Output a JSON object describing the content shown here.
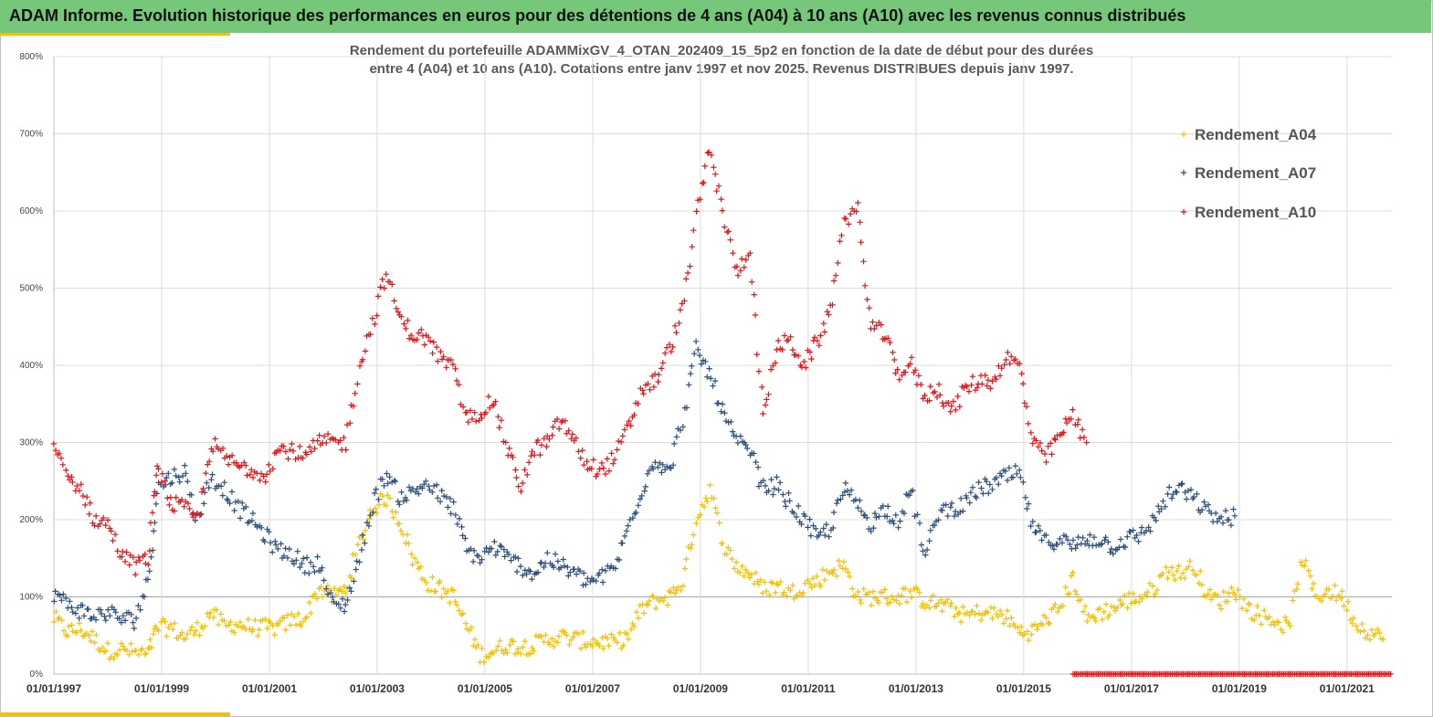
{
  "header": {
    "title": "ADAM Informe. Evolution historique des performances en euros pour des détentions de 4 ans (A04) à 10 ans (A10) avec les revenus connus distribués"
  },
  "colors": {
    "header_bg": "#77c77a",
    "accent": "#f2c200",
    "A04": "#f5c000",
    "A07": "#2e4f7c",
    "A10": "#e8141a"
  },
  "chart_data": {
    "type": "scatter",
    "title_line1": "Rendement du portefeuille ADAMMixGV_4_OTAN_202409_15_5p2  en fonction de la date de début pour des durées",
    "title_line2": "entre 4 (A04) et 10 ans (A10). Cotations entre janv 1997 et nov 2025. Revenus DISTRIBUES depuis janv 1997.",
    "x_range": [
      "1997-01-01",
      "2021-11-01"
    ],
    "ylim": [
      0,
      800
    ],
    "y_ticks": [
      "0%",
      "100%",
      "200%",
      "300%",
      "400%",
      "500%",
      "600%",
      "700%",
      "800%"
    ],
    "x_ticks": [
      "01/01/1997",
      "01/01/1999",
      "01/01/2001",
      "01/01/2003",
      "01/01/2005",
      "01/01/2007",
      "01/01/2009",
      "01/01/2011",
      "01/01/2013",
      "01/01/2015",
      "01/01/2017",
      "01/01/2019",
      "01/01/2021"
    ],
    "grid": true,
    "legend_position": "top-right",
    "series": [
      {
        "name": "Rendement_A04",
        "color": "#f5c000",
        "points": [
          [
            "1997-01",
            72
          ],
          [
            "1997-04",
            55
          ],
          [
            "1997-07",
            58
          ],
          [
            "1997-10",
            45
          ],
          [
            "1998-01",
            30
          ],
          [
            "1998-04",
            32
          ],
          [
            "1998-07",
            28
          ],
          [
            "1998-10",
            25
          ],
          [
            "1998-12",
            60
          ],
          [
            "1999-03",
            60
          ],
          [
            "1999-06",
            48
          ],
          [
            "1999-09",
            58
          ],
          [
            "1999-12",
            80
          ],
          [
            "2000-03",
            62
          ],
          [
            "2000-06",
            65
          ],
          [
            "2000-09",
            60
          ],
          [
            "2000-12",
            60
          ],
          [
            "2001-03",
            60
          ],
          [
            "2001-06",
            70
          ],
          [
            "2001-09",
            72
          ],
          [
            "2001-12",
            112
          ],
          [
            "2002-03",
            100
          ],
          [
            "2002-06",
            110
          ],
          [
            "2002-09",
            170
          ],
          [
            "2002-12",
            215
          ],
          [
            "2003-03",
            228
          ],
          [
            "2003-06",
            200
          ],
          [
            "2003-09",
            150
          ],
          [
            "2003-12",
            120
          ],
          [
            "2004-03",
            110
          ],
          [
            "2004-06",
            100
          ],
          [
            "2004-09",
            60
          ],
          [
            "2004-12",
            25
          ],
          [
            "2005-03",
            30
          ],
          [
            "2005-06",
            38
          ],
          [
            "2005-09",
            35
          ],
          [
            "2005-12",
            38
          ],
          [
            "2006-03",
            45
          ],
          [
            "2006-06",
            48
          ],
          [
            "2006-09",
            45
          ],
          [
            "2006-12",
            42
          ],
          [
            "2007-03",
            42
          ],
          [
            "2007-06",
            40
          ],
          [
            "2007-09",
            50
          ],
          [
            "2007-12",
            85
          ],
          [
            "2008-03",
            95
          ],
          [
            "2008-06",
            100
          ],
          [
            "2008-09",
            120
          ],
          [
            "2008-12",
            200
          ],
          [
            "2009-03",
            240
          ],
          [
            "2009-06",
            170
          ],
          [
            "2009-09",
            140
          ],
          [
            "2009-12",
            130
          ],
          [
            "2010-03",
            110
          ],
          [
            "2010-06",
            115
          ],
          [
            "2010-09",
            105
          ],
          [
            "2010-12",
            115
          ],
          [
            "2011-03",
            120
          ],
          [
            "2011-06",
            135
          ],
          [
            "2011-09",
            140
          ],
          [
            "2011-12",
            100
          ],
          [
            "2012-03",
            100
          ],
          [
            "2012-06",
            100
          ],
          [
            "2012-09",
            100
          ],
          [
            "2012-12",
            105
          ],
          [
            "2013-03",
            95
          ],
          [
            "2013-06",
            90
          ],
          [
            "2013-09",
            85
          ],
          [
            "2013-12",
            75
          ],
          [
            "2014-03",
            80
          ],
          [
            "2014-06",
            78
          ],
          [
            "2014-09",
            75
          ],
          [
            "2014-12",
            55
          ],
          [
            "2015-03",
            55
          ],
          [
            "2015-06",
            70
          ],
          [
            "2015-09",
            85
          ],
          [
            "2015-12",
            125
          ],
          [
            "2016-03",
            70
          ],
          [
            "2016-06",
            80
          ],
          [
            "2016-09",
            85
          ],
          [
            "2016-12",
            95
          ],
          [
            "2017-03",
            100
          ],
          [
            "2017-06",
            110
          ],
          [
            "2017-09",
            135
          ],
          [
            "2017-12",
            130
          ],
          [
            "2018-03",
            140
          ],
          [
            "2018-06",
            100
          ],
          [
            "2018-09",
            95
          ],
          [
            "2018-12",
            110
          ],
          [
            "2019-03",
            85
          ],
          [
            "2019-06",
            75
          ],
          [
            "2019-09",
            70
          ],
          [
            "2019-12",
            60
          ],
          [
            "2020-03",
            150
          ],
          [
            "2020-06",
            100
          ],
          [
            "2020-09",
            108
          ],
          [
            "2020-12",
            100
          ],
          [
            "2021-03",
            65
          ],
          [
            "2021-06",
            55
          ],
          [
            "2021-09",
            45
          ]
        ]
      },
      {
        "name": "Rendement_A07",
        "color": "#2e4f7c",
        "points": [
          [
            "1997-01",
            105
          ],
          [
            "1997-04",
            90
          ],
          [
            "1997-07",
            82
          ],
          [
            "1997-10",
            75
          ],
          [
            "1998-01",
            80
          ],
          [
            "1998-04",
            72
          ],
          [
            "1998-07",
            70
          ],
          [
            "1998-10",
            120
          ],
          [
            "1998-12",
            240
          ],
          [
            "1999-03",
            255
          ],
          [
            "1999-06",
            262
          ],
          [
            "1999-09",
            200
          ],
          [
            "1999-12",
            255
          ],
          [
            "2000-03",
            240
          ],
          [
            "2000-06",
            215
          ],
          [
            "2000-09",
            200
          ],
          [
            "2000-12",
            180
          ],
          [
            "2001-03",
            160
          ],
          [
            "2001-06",
            155
          ],
          [
            "2001-09",
            140
          ],
          [
            "2001-12",
            145
          ],
          [
            "2002-03",
            90
          ],
          [
            "2002-06",
            90
          ],
          [
            "2002-09",
            150
          ],
          [
            "2002-12",
            220
          ],
          [
            "2003-03",
            260
          ],
          [
            "2003-06",
            230
          ],
          [
            "2003-09",
            235
          ],
          [
            "2003-12",
            248
          ],
          [
            "2004-03",
            230
          ],
          [
            "2004-06",
            215
          ],
          [
            "2004-09",
            160
          ],
          [
            "2004-12",
            150
          ],
          [
            "2005-03",
            165
          ],
          [
            "2005-06",
            150
          ],
          [
            "2005-09",
            140
          ],
          [
            "2005-12",
            130
          ],
          [
            "2006-03",
            150
          ],
          [
            "2006-06",
            140
          ],
          [
            "2006-09",
            130
          ],
          [
            "2006-12",
            120
          ],
          [
            "2007-03",
            125
          ],
          [
            "2007-06",
            140
          ],
          [
            "2007-09",
            190
          ],
          [
            "2007-12",
            240
          ],
          [
            "2008-03",
            280
          ],
          [
            "2008-06",
            260
          ],
          [
            "2008-09",
            330
          ],
          [
            "2008-12",
            420
          ],
          [
            "2009-03",
            390
          ],
          [
            "2009-06",
            340
          ],
          [
            "2009-09",
            300
          ],
          [
            "2009-12",
            290
          ],
          [
            "2010-03",
            240
          ],
          [
            "2010-06",
            245
          ],
          [
            "2010-09",
            220
          ],
          [
            "2010-12",
            200
          ],
          [
            "2011-03",
            175
          ],
          [
            "2011-06",
            190
          ],
          [
            "2011-09",
            240
          ],
          [
            "2011-12",
            220
          ],
          [
            "2012-03",
            195
          ],
          [
            "2012-06",
            215
          ],
          [
            "2012-09",
            200
          ],
          [
            "2012-12",
            240
          ],
          [
            "2013-03",
            150
          ],
          [
            "2013-06",
            210
          ],
          [
            "2013-09",
            215
          ],
          [
            "2013-12",
            220
          ],
          [
            "2014-03",
            240
          ],
          [
            "2014-06",
            245
          ],
          [
            "2014-09",
            255
          ],
          [
            "2014-12",
            260
          ],
          [
            "2015-03",
            190
          ],
          [
            "2015-06",
            170
          ],
          [
            "2015-09",
            175
          ],
          [
            "2015-12",
            165
          ],
          [
            "2016-03",
            175
          ],
          [
            "2016-06",
            175
          ],
          [
            "2016-09",
            165
          ],
          [
            "2016-12",
            175
          ],
          [
            "2017-03",
            180
          ],
          [
            "2017-06",
            200
          ],
          [
            "2017-09",
            230
          ],
          [
            "2017-12",
            240
          ],
          [
            "2018-03",
            225
          ],
          [
            "2018-06",
            210
          ],
          [
            "2018-09",
            200
          ],
          [
            "2018-12",
            205
          ]
        ]
      },
      {
        "name": "Rendement_A10",
        "color": "#e8141a",
        "points": [
          [
            "1997-01",
            295
          ],
          [
            "1997-04",
            255
          ],
          [
            "1997-07",
            240
          ],
          [
            "1997-10",
            200
          ],
          [
            "1998-01",
            195
          ],
          [
            "1998-04",
            155
          ],
          [
            "1998-07",
            140
          ],
          [
            "1998-10",
            150
          ],
          [
            "1998-12",
            275
          ],
          [
            "1999-03",
            220
          ],
          [
            "1999-06",
            215
          ],
          [
            "1999-09",
            200
          ],
          [
            "1999-12",
            300
          ],
          [
            "2000-03",
            280
          ],
          [
            "2000-06",
            270
          ],
          [
            "2000-09",
            265
          ],
          [
            "2000-12",
            260
          ],
          [
            "2001-03",
            290
          ],
          [
            "2001-06",
            290
          ],
          [
            "2001-09",
            280
          ],
          [
            "2001-12",
            300
          ],
          [
            "2002-03",
            300
          ],
          [
            "2002-06",
            300
          ],
          [
            "2002-09",
            400
          ],
          [
            "2002-12",
            455
          ],
          [
            "2003-03",
            520
          ],
          [
            "2003-06",
            460
          ],
          [
            "2003-09",
            440
          ],
          [
            "2003-12",
            435
          ],
          [
            "2004-03",
            410
          ],
          [
            "2004-06",
            395
          ],
          [
            "2004-09",
            330
          ],
          [
            "2004-12",
            340
          ],
          [
            "2005-03",
            355
          ],
          [
            "2005-06",
            290
          ],
          [
            "2005-09",
            245
          ],
          [
            "2005-12",
            290
          ],
          [
            "2006-03",
            300
          ],
          [
            "2006-06",
            330
          ],
          [
            "2006-09",
            300
          ],
          [
            "2006-12",
            270
          ],
          [
            "2007-03",
            265
          ],
          [
            "2007-06",
            280
          ],
          [
            "2007-09",
            320
          ],
          [
            "2007-12",
            370
          ],
          [
            "2008-03",
            380
          ],
          [
            "2008-06",
            420
          ],
          [
            "2008-09",
            470
          ],
          [
            "2008-12",
            590
          ],
          [
            "2009-03",
            680
          ],
          [
            "2009-06",
            600
          ],
          [
            "2009-09",
            520
          ],
          [
            "2009-12",
            550
          ],
          [
            "2010-03",
            330
          ],
          [
            "2010-06",
            425
          ],
          [
            "2010-09",
            430
          ],
          [
            "2010-12",
            400
          ],
          [
            "2011-03",
            430
          ],
          [
            "2011-06",
            470
          ],
          [
            "2011-09",
            590
          ],
          [
            "2011-12",
            600
          ],
          [
            "2012-03",
            450
          ],
          [
            "2012-06",
            440
          ],
          [
            "2012-09",
            390
          ],
          [
            "2012-12",
            400
          ],
          [
            "2013-03",
            360
          ],
          [
            "2013-06",
            370
          ],
          [
            "2013-09",
            340
          ],
          [
            "2013-12",
            370
          ],
          [
            "2014-03",
            380
          ],
          [
            "2014-06",
            380
          ],
          [
            "2014-09",
            410
          ],
          [
            "2014-12",
            400
          ],
          [
            "2015-03",
            300
          ],
          [
            "2015-06",
            280
          ],
          [
            "2015-09",
            310
          ],
          [
            "2015-12",
            335
          ],
          [
            "2016-03",
            300
          ]
        ]
      }
    ]
  }
}
